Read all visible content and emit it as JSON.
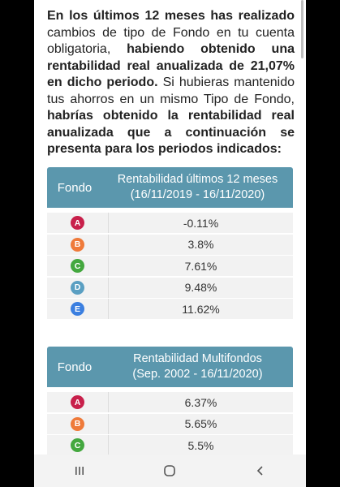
{
  "intro": {
    "p1": "En los últimos 12 meses has realizado",
    "p2": " cambios de tipo de Fondo en tu cuenta obligatoria, ",
    "p3": "habiendo obtenido una rentabilidad real anualizada de 21,07% en dicho periodo.",
    "p4": " Si hubieras mantenido tus ahorros en un mismo Tipo de Fondo, ",
    "p5": "habrías obtenido la rentabilidad real anualizada que a continuación se presenta para los periodos indicados:"
  },
  "table1": {
    "col1": "Fondo",
    "col2_line1": "Rentabilidad últimos 12 meses",
    "col2_line2": "(16/11/2019 - 16/11/2020)",
    "rows": [
      {
        "fund": "A",
        "value": "-0.11%",
        "color": "#c8204b"
      },
      {
        "fund": "B",
        "value": "3.8%",
        "color": "#ef7a3a"
      },
      {
        "fund": "C",
        "value": "7.61%",
        "color": "#44a83f"
      },
      {
        "fund": "D",
        "value": "9.48%",
        "color": "#5a9fc2"
      },
      {
        "fund": "E",
        "value": "11.62%",
        "color": "#3b7fe0"
      }
    ]
  },
  "table2": {
    "col1": "Fondo",
    "col2_line1": "Rentabilidad Multifondos",
    "col2_line2": "(Sep. 2002 - 16/11/2020)",
    "rows": [
      {
        "fund": "A",
        "value": "6.37%",
        "color": "#c8204b"
      },
      {
        "fund": "B",
        "value": "5.65%",
        "color": "#ef7a3a"
      },
      {
        "fund": "C",
        "value": "5.5%",
        "color": "#44a83f"
      }
    ]
  },
  "navbar": {
    "recents_icon": "recents-icon",
    "home_icon": "home-icon",
    "back_icon": "back-icon"
  }
}
